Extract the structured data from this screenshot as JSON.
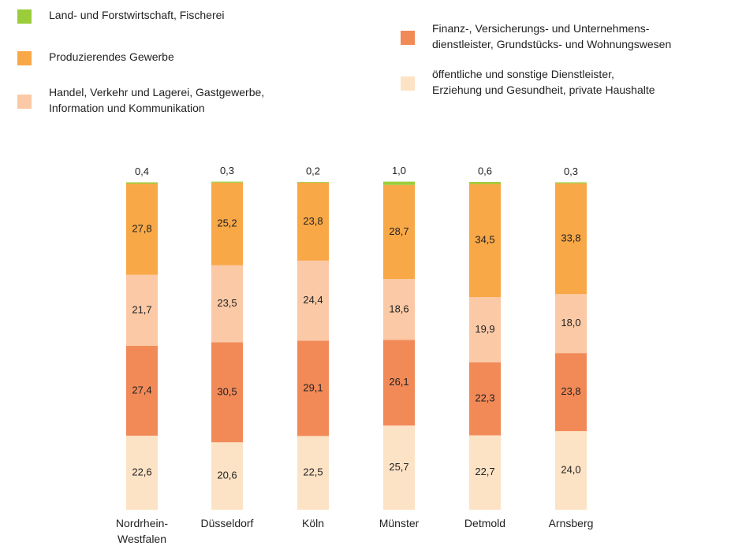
{
  "chart_data": {
    "type": "stacked-bar",
    "categories": [
      "Nordrhein-\nWestfalen",
      "Düsseldorf",
      "Köln",
      "Münster",
      "Detmold",
      "Arnsberg"
    ],
    "ylim": [
      0,
      100
    ],
    "series": [
      {
        "name": "öffentliche und sonstige Dienstleister,\nErziehung und Gesundheit, private Haushalte",
        "color": "#fde3c6",
        "values": [
          22.6,
          20.6,
          22.5,
          25.7,
          22.7,
          24.0
        ],
        "value_labels": [
          "22,6",
          "20,6",
          "22,5",
          "25,7",
          "22,7",
          "24,0"
        ]
      },
      {
        "name": "Finanz-, Versicherungs- und Unternehmens-\ndienstleister, Grundstücks- und Wohnungswesen",
        "color": "#f28a58",
        "values": [
          27.4,
          30.5,
          29.1,
          26.1,
          22.3,
          23.8
        ],
        "value_labels": [
          "27,4",
          "30,5",
          "29,1",
          "26,1",
          "22,3",
          "23,8"
        ]
      },
      {
        "name": "Handel, Verkehr und Lagerei, Gastgewerbe,\nInformation und Kommunikation",
        "color": "#fcc9a6",
        "values": [
          21.7,
          23.5,
          24.4,
          18.6,
          19.9,
          18.0
        ],
        "value_labels": [
          "21,7",
          "23,5",
          "24,4",
          "18,6",
          "19,9",
          "18,0"
        ]
      },
      {
        "name": "Produzierendes Gewerbe",
        "color": "#f9a847",
        "values": [
          27.8,
          25.2,
          23.8,
          28.7,
          34.5,
          33.8
        ],
        "value_labels": [
          "27,8",
          "25,2",
          "23,8",
          "28,7",
          "34,5",
          "33,8"
        ]
      },
      {
        "name": "Land- und Forstwirtschaft, Fischerei",
        "color": "#9bcd3b",
        "values": [
          0.4,
          0.3,
          0.2,
          1.0,
          0.6,
          0.3
        ],
        "value_labels": [
          "0,4",
          "0,3",
          "0,2",
          "1,0",
          "0,6",
          "0,3"
        ]
      }
    ]
  }
}
